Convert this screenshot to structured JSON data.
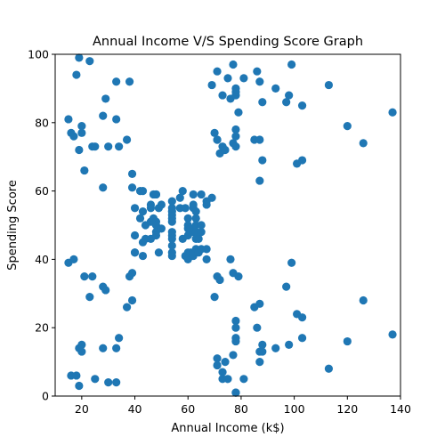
{
  "chart_data": {
    "type": "scatter",
    "title": "Annual Income V/S Spending Score Graph",
    "xlabel": "Annual Income (k$)",
    "ylabel": "Spending Score",
    "xlim": [
      10,
      140
    ],
    "ylim": [
      0,
      100
    ],
    "xticks": [
      20,
      40,
      60,
      80,
      100,
      120,
      140
    ],
    "yticks": [
      0,
      20,
      40,
      60,
      80,
      100
    ],
    "grid": false,
    "marker_color": "#1f77b4",
    "points": [
      [
        15,
        39
      ],
      [
        15,
        81
      ],
      [
        16,
        6
      ],
      [
        16,
        77
      ],
      [
        17,
        40
      ],
      [
        17,
        76
      ],
      [
        18,
        6
      ],
      [
        18,
        94
      ],
      [
        19,
        3
      ],
      [
        19,
        72
      ],
      [
        19,
        14
      ],
      [
        19,
        99
      ],
      [
        20,
        15
      ],
      [
        20,
        77
      ],
      [
        20,
        13
      ],
      [
        20,
        79
      ],
      [
        21,
        35
      ],
      [
        21,
        66
      ],
      [
        23,
        29
      ],
      [
        23,
        98
      ],
      [
        24,
        35
      ],
      [
        24,
        73
      ],
      [
        25,
        5
      ],
      [
        25,
        73
      ],
      [
        28,
        14
      ],
      [
        28,
        82
      ],
      [
        28,
        32
      ],
      [
        28,
        61
      ],
      [
        29,
        31
      ],
      [
        29,
        87
      ],
      [
        30,
        4
      ],
      [
        30,
        73
      ],
      [
        33,
        4
      ],
      [
        33,
        92
      ],
      [
        33,
        14
      ],
      [
        33,
        81
      ],
      [
        34,
        17
      ],
      [
        34,
        73
      ],
      [
        37,
        26
      ],
      [
        37,
        75
      ],
      [
        38,
        35
      ],
      [
        38,
        92
      ],
      [
        39,
        36
      ],
      [
        39,
        61
      ],
      [
        39,
        28
      ],
      [
        39,
        65
      ],
      [
        40,
        55
      ],
      [
        40,
        47
      ],
      [
        40,
        42
      ],
      [
        40,
        42
      ],
      [
        42,
        52
      ],
      [
        42,
        60
      ],
      [
        43,
        54
      ],
      [
        43,
        60
      ],
      [
        43,
        45
      ],
      [
        43,
        41
      ],
      [
        44,
        50
      ],
      [
        44,
        46
      ],
      [
        46,
        51
      ],
      [
        46,
        46
      ],
      [
        46,
        56
      ],
      [
        46,
        55
      ],
      [
        47,
        52
      ],
      [
        47,
        59
      ],
      [
        48,
        51
      ],
      [
        48,
        59
      ],
      [
        48,
        50
      ],
      [
        48,
        48
      ],
      [
        48,
        59
      ],
      [
        48,
        47
      ],
      [
        49,
        55
      ],
      [
        49,
        42
      ],
      [
        50,
        49
      ],
      [
        50,
        56
      ],
      [
        54,
        47
      ],
      [
        54,
        54
      ],
      [
        54,
        53
      ],
      [
        54,
        48
      ],
      [
        54,
        52
      ],
      [
        54,
        42
      ],
      [
        54,
        51
      ],
      [
        54,
        55
      ],
      [
        54,
        41
      ],
      [
        54,
        44
      ],
      [
        54,
        57
      ],
      [
        54,
        46
      ],
      [
        57,
        58
      ],
      [
        57,
        55
      ],
      [
        58,
        60
      ],
      [
        58,
        46
      ],
      [
        59,
        55
      ],
      [
        59,
        41
      ],
      [
        60,
        49
      ],
      [
        60,
        40
      ],
      [
        60,
        42
      ],
      [
        60,
        52
      ],
      [
        60,
        47
      ],
      [
        60,
        50
      ],
      [
        61,
        42
      ],
      [
        61,
        49
      ],
      [
        62,
        41
      ],
      [
        62,
        48
      ],
      [
        62,
        59
      ],
      [
        62,
        55
      ],
      [
        62,
        56
      ],
      [
        62,
        42
      ],
      [
        63,
        50
      ],
      [
        63,
        46
      ],
      [
        63,
        43
      ],
      [
        63,
        48
      ],
      [
        63,
        52
      ],
      [
        63,
        54
      ],
      [
        64,
        42
      ],
      [
        64,
        46
      ],
      [
        65,
        48
      ],
      [
        65,
        50
      ],
      [
        65,
        43
      ],
      [
        65,
        59
      ],
      [
        67,
        43
      ],
      [
        67,
        57
      ],
      [
        67,
        56
      ],
      [
        67,
        40
      ],
      [
        69,
        58
      ],
      [
        69,
        91
      ],
      [
        70,
        29
      ],
      [
        70,
        77
      ],
      [
        71,
        35
      ],
      [
        71,
        95
      ],
      [
        71,
        11
      ],
      [
        71,
        75
      ],
      [
        71,
        9
      ],
      [
        71,
        75
      ],
      [
        72,
        34
      ],
      [
        72,
        71
      ],
      [
        73,
        5
      ],
      [
        73,
        88
      ],
      [
        73,
        7
      ],
      [
        73,
        73
      ],
      [
        74,
        10
      ],
      [
        74,
        72
      ],
      [
        75,
        5
      ],
      [
        75,
        93
      ],
      [
        76,
        40
      ],
      [
        76,
        87
      ],
      [
        77,
        12
      ],
      [
        77,
        97
      ],
      [
        77,
        36
      ],
      [
        77,
        74
      ],
      [
        78,
        22
      ],
      [
        78,
        90
      ],
      [
        78,
        17
      ],
      [
        78,
        88
      ],
      [
        78,
        20
      ],
      [
        78,
        76
      ],
      [
        78,
        16
      ],
      [
        78,
        89
      ],
      [
        78,
        1
      ],
      [
        78,
        78
      ],
      [
        78,
        1
      ],
      [
        78,
        73
      ],
      [
        79,
        35
      ],
      [
        79,
        83
      ],
      [
        81,
        5
      ],
      [
        81,
        93
      ],
      [
        85,
        26
      ],
      [
        85,
        75
      ],
      [
        86,
        20
      ],
      [
        86,
        95
      ],
      [
        87,
        27
      ],
      [
        87,
        63
      ],
      [
        87,
        13
      ],
      [
        87,
        75
      ],
      [
        87,
        10
      ],
      [
        87,
        92
      ],
      [
        88,
        13
      ],
      [
        88,
        86
      ],
      [
        88,
        15
      ],
      [
        88,
        69
      ],
      [
        93,
        14
      ],
      [
        93,
        90
      ],
      [
        97,
        32
      ],
      [
        97,
        86
      ],
      [
        98,
        15
      ],
      [
        98,
        88
      ],
      [
        99,
        39
      ],
      [
        99,
        97
      ],
      [
        101,
        24
      ],
      [
        101,
        68
      ],
      [
        103,
        17
      ],
      [
        103,
        85
      ],
      [
        103,
        23
      ],
      [
        103,
        69
      ],
      [
        113,
        8
      ],
      [
        113,
        91
      ],
      [
        120,
        16
      ],
      [
        120,
        79
      ],
      [
        126,
        28
      ],
      [
        126,
        74
      ],
      [
        137,
        18
      ],
      [
        137,
        83
      ]
    ]
  }
}
